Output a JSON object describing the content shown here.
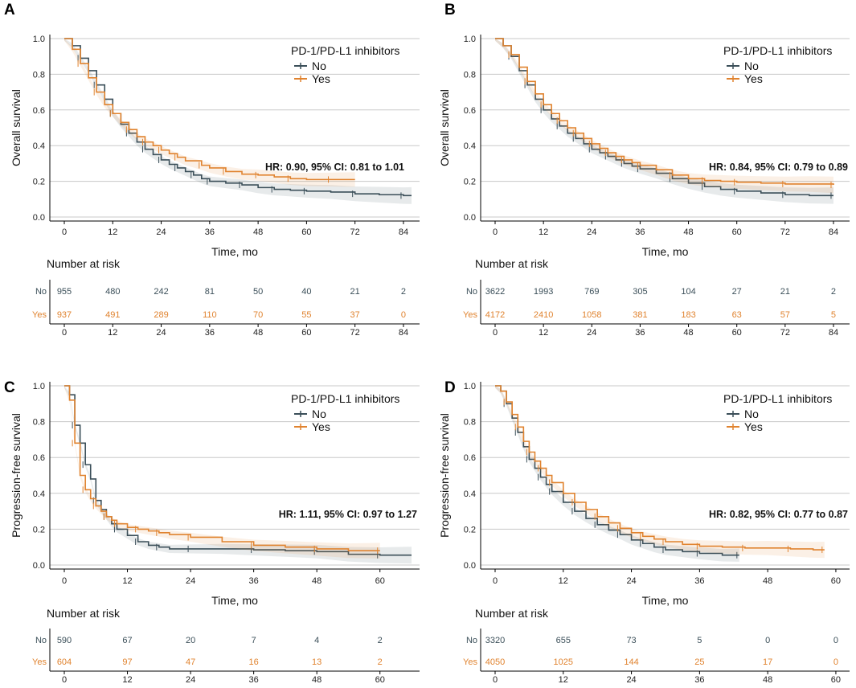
{
  "colors": {
    "no": "#3b4f59",
    "yes": "#e0832f",
    "grid": "#c8c8c8"
  },
  "common": {
    "xlabel": "Time, mo",
    "risk_title": "Number at risk",
    "legend_title": "PD-1/PD-L1 inhibitors",
    "group_no": "No",
    "group_yes": "Yes"
  },
  "chart_data": [
    {
      "type": "line",
      "panel": "A",
      "title": "A",
      "ylabel": "Overall survival",
      "xlabel": "Time, mo",
      "xlim": [
        0,
        86
      ],
      "ylim": [
        0,
        1
      ],
      "xticks": [
        0,
        12,
        24,
        36,
        48,
        60,
        72,
        84
      ],
      "yticks": [
        0.0,
        0.2,
        0.4,
        0.6,
        0.8,
        1.0
      ],
      "hr": "HR: 0.90, 95% CI: 0.81 to 1.01",
      "series": [
        {
          "name": "No",
          "x": [
            0,
            2,
            4,
            6,
            8,
            10,
            12,
            14,
            16,
            18,
            20,
            22,
            24,
            26,
            28,
            30,
            32,
            34,
            36,
            40,
            44,
            48,
            52,
            56,
            60,
            66,
            72,
            78,
            84,
            86
          ],
          "y": [
            1.0,
            0.96,
            0.89,
            0.82,
            0.74,
            0.66,
            0.58,
            0.52,
            0.47,
            0.42,
            0.38,
            0.35,
            0.32,
            0.295,
            0.275,
            0.255,
            0.235,
            0.215,
            0.2,
            0.19,
            0.18,
            0.165,
            0.155,
            0.15,
            0.145,
            0.14,
            0.13,
            0.125,
            0.12,
            0.12
          ]
        },
        {
          "name": "Yes",
          "x": [
            0,
            2,
            4,
            6,
            8,
            10,
            12,
            14,
            16,
            18,
            20,
            22,
            24,
            26,
            28,
            30,
            34,
            36,
            40,
            44,
            48,
            52,
            56,
            60,
            66,
            72
          ],
          "y": [
            1.0,
            0.94,
            0.86,
            0.78,
            0.7,
            0.63,
            0.58,
            0.53,
            0.49,
            0.45,
            0.42,
            0.4,
            0.375,
            0.355,
            0.335,
            0.315,
            0.29,
            0.275,
            0.255,
            0.24,
            0.235,
            0.225,
            0.215,
            0.21,
            0.21,
            0.21
          ]
        }
      ],
      "risk_times": [
        0,
        12,
        24,
        36,
        48,
        60,
        72,
        84
      ],
      "risk_no": [
        955,
        480,
        242,
        81,
        50,
        40,
        21,
        2
      ],
      "risk_yes": [
        937,
        491,
        289,
        110,
        70,
        55,
        37,
        0
      ]
    },
    {
      "type": "line",
      "panel": "B",
      "title": "B",
      "ylabel": "Overall survival",
      "xlabel": "Time, mo",
      "xlim": [
        0,
        86
      ],
      "ylim": [
        0,
        1
      ],
      "xticks": [
        0,
        12,
        24,
        36,
        48,
        60,
        72,
        84
      ],
      "yticks": [
        0.0,
        0.2,
        0.4,
        0.6,
        0.8,
        1.0
      ],
      "hr": "HR: 0.84, 95% CI: 0.79 to 0.89",
      "series": [
        {
          "name": "No",
          "x": [
            0,
            2,
            4,
            6,
            8,
            10,
            12,
            14,
            16,
            18,
            20,
            22,
            24,
            26,
            28,
            30,
            32,
            34,
            36,
            40,
            44,
            48,
            52,
            56,
            60,
            66,
            72,
            78,
            84
          ],
          "y": [
            1.0,
            0.96,
            0.9,
            0.82,
            0.74,
            0.66,
            0.6,
            0.55,
            0.51,
            0.47,
            0.44,
            0.41,
            0.38,
            0.36,
            0.34,
            0.32,
            0.3,
            0.285,
            0.27,
            0.245,
            0.215,
            0.19,
            0.17,
            0.155,
            0.145,
            0.135,
            0.125,
            0.12,
            0.12
          ]
        },
        {
          "name": "Yes",
          "x": [
            0,
            2,
            4,
            6,
            8,
            10,
            12,
            14,
            16,
            18,
            20,
            22,
            24,
            26,
            28,
            30,
            32,
            34,
            36,
            40,
            44,
            48,
            52,
            56,
            60,
            66,
            72,
            78,
            84
          ],
          "y": [
            1.0,
            0.96,
            0.91,
            0.84,
            0.76,
            0.69,
            0.63,
            0.58,
            0.54,
            0.5,
            0.47,
            0.44,
            0.41,
            0.385,
            0.36,
            0.34,
            0.32,
            0.305,
            0.29,
            0.265,
            0.235,
            0.215,
            0.205,
            0.2,
            0.195,
            0.19,
            0.185,
            0.185,
            0.18
          ]
        }
      ],
      "risk_times": [
        0,
        12,
        24,
        36,
        48,
        60,
        72,
        84
      ],
      "risk_no": [
        3622,
        1993,
        769,
        305,
        104,
        27,
        21,
        2
      ],
      "risk_yes": [
        4172,
        2410,
        1058,
        381,
        183,
        63,
        57,
        5
      ]
    },
    {
      "type": "line",
      "panel": "C",
      "title": "C",
      "ylabel": "Progression-free survival",
      "xlabel": "Time, mo",
      "xlim": [
        0,
        66
      ],
      "ylim": [
        0,
        1
      ],
      "xticks": [
        0,
        12,
        24,
        36,
        48,
        60
      ],
      "yticks": [
        0.0,
        0.2,
        0.4,
        0.6,
        0.8,
        1.0
      ],
      "hr": "HR: 1.11, 95% CI: 0.97 to 1.27",
      "series": [
        {
          "name": "No",
          "x": [
            0,
            1,
            2,
            3,
            4,
            5,
            6,
            7,
            8,
            9,
            10,
            12,
            14,
            16,
            18,
            20,
            24,
            30,
            36,
            42,
            48,
            54,
            60,
            66
          ],
          "y": [
            1.0,
            0.95,
            0.78,
            0.68,
            0.56,
            0.48,
            0.36,
            0.31,
            0.27,
            0.23,
            0.2,
            0.165,
            0.13,
            0.11,
            0.1,
            0.09,
            0.09,
            0.09,
            0.085,
            0.08,
            0.075,
            0.06,
            0.055,
            0.055
          ]
        },
        {
          "name": "Yes",
          "x": [
            0,
            1,
            2,
            3,
            4,
            5,
            6,
            7,
            8,
            9,
            10,
            12,
            14,
            16,
            18,
            20,
            24,
            30,
            36,
            42,
            48,
            54,
            60
          ],
          "y": [
            1.0,
            0.92,
            0.68,
            0.5,
            0.42,
            0.37,
            0.33,
            0.3,
            0.27,
            0.25,
            0.23,
            0.21,
            0.2,
            0.19,
            0.18,
            0.17,
            0.155,
            0.13,
            0.11,
            0.1,
            0.09,
            0.08,
            0.08
          ]
        }
      ],
      "risk_times": [
        0,
        12,
        24,
        36,
        48,
        60
      ],
      "risk_no": [
        590,
        67,
        20,
        7,
        4,
        2
      ],
      "risk_yes": [
        604,
        97,
        47,
        16,
        13,
        2
      ]
    },
    {
      "type": "line",
      "panel": "D",
      "title": "D",
      "ylabel": "Progression-free survival",
      "xlabel": "Time, mo",
      "xlim": [
        0,
        61
      ],
      "ylim": [
        0,
        1
      ],
      "xticks": [
        0,
        12,
        24,
        36,
        48,
        60
      ],
      "yticks": [
        0.0,
        0.2,
        0.4,
        0.6,
        0.8,
        1.0
      ],
      "hr": "HR: 0.82, 95% CI: 0.77 to 0.87",
      "series": [
        {
          "name": "No",
          "x": [
            0,
            1,
            2,
            3,
            4,
            5,
            6,
            7,
            8,
            9,
            10,
            12,
            14,
            16,
            18,
            20,
            22,
            24,
            26,
            28,
            30,
            33,
            36,
            40,
            43
          ],
          "y": [
            1.0,
            0.97,
            0.9,
            0.82,
            0.74,
            0.66,
            0.59,
            0.54,
            0.49,
            0.45,
            0.41,
            0.35,
            0.3,
            0.26,
            0.225,
            0.195,
            0.17,
            0.14,
            0.12,
            0.1,
            0.085,
            0.075,
            0.065,
            0.055,
            0.055
          ]
        },
        {
          "name": "Yes",
          "x": [
            0,
            1,
            2,
            3,
            4,
            5,
            6,
            7,
            8,
            9,
            10,
            12,
            14,
            16,
            18,
            20,
            22,
            24,
            26,
            28,
            30,
            33,
            36,
            40,
            44,
            48,
            52,
            56,
            58
          ],
          "y": [
            1.0,
            0.97,
            0.91,
            0.84,
            0.77,
            0.69,
            0.63,
            0.58,
            0.54,
            0.5,
            0.46,
            0.4,
            0.35,
            0.31,
            0.27,
            0.235,
            0.205,
            0.18,
            0.16,
            0.145,
            0.13,
            0.115,
            0.105,
            0.1,
            0.095,
            0.095,
            0.09,
            0.085,
            0.085
          ]
        }
      ],
      "risk_times": [
        0,
        12,
        24,
        36,
        48,
        60
      ],
      "risk_no": [
        3320,
        655,
        73,
        5,
        0,
        0
      ],
      "risk_yes": [
        4050,
        1025,
        144,
        25,
        17,
        0
      ]
    }
  ]
}
